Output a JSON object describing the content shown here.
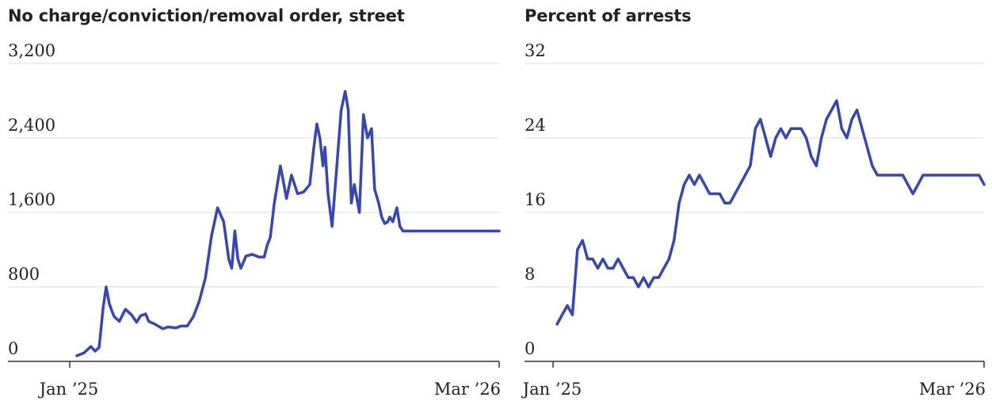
{
  "colors": {
    "line": "#3645b8",
    "grid": "#dddddd",
    "axis": "#333333",
    "text": "#222222"
  },
  "chart_data": [
    {
      "type": "line",
      "title": "No charge/conviction/removal order, street",
      "xlabel": "",
      "ylabel": "",
      "ylim": [
        0,
        3200
      ],
      "yticks": [
        0,
        800,
        1600,
        2400,
        3200
      ],
      "ytick_labels": [
        "0",
        "800",
        "1,600",
        "2,400",
        "3,200"
      ],
      "xlim": [
        "2025-01-01",
        "2026-03-01"
      ],
      "xtick_labels": [
        "Jan ’25",
        "Mar ’26"
      ],
      "grid": true,
      "series": [
        {
          "x": [
            "2025-01-08",
            "2025-01-15",
            "2025-01-22",
            "2025-01-26",
            "2025-01-30",
            "2025-02-03",
            "2025-02-06",
            "2025-02-09",
            "2025-02-12",
            "2025-02-14",
            "2025-02-19",
            "2025-02-25",
            "2025-03-03",
            "2025-03-08",
            "2025-03-12",
            "2025-03-17",
            "2025-03-20",
            "2025-03-26",
            "2025-04-03",
            "2025-04-08",
            "2025-04-16",
            "2025-04-21",
            "2025-04-27",
            "2025-05-03",
            "2025-05-09",
            "2025-05-15",
            "2025-05-21",
            "2025-05-27",
            "2025-06-02",
            "2025-06-07",
            "2025-06-10",
            "2025-06-13",
            "2025-06-16",
            "2025-06-19",
            "2025-06-24",
            "2025-06-30",
            "2025-07-07",
            "2025-07-12",
            "2025-07-15",
            "2025-07-18",
            "2025-07-22",
            "2025-07-28",
            "2025-08-03",
            "2025-08-08",
            "2025-08-14",
            "2025-08-20",
            "2025-08-26",
            "2025-08-30",
            "2025-09-02",
            "2025-09-05",
            "2025-09-08",
            "2025-09-10",
            "2025-09-13",
            "2025-09-17",
            "2025-09-21",
            "2025-09-26",
            "2025-09-30",
            "2025-10-03",
            "2025-10-06",
            "2025-10-09",
            "2025-10-14",
            "2025-10-18",
            "2025-10-22",
            "2025-10-26",
            "2025-10-29",
            "2025-11-02",
            "2025-11-05",
            "2025-11-08",
            "2025-11-11",
            "2025-11-13",
            "2025-11-16",
            "2025-11-20",
            "2025-11-23",
            "2025-11-26",
            "2025-12-01",
            "2025-12-04",
            "2025-12-06",
            "2025-12-09",
            "2025-12-12",
            "2025-12-15",
            "2025-12-18",
            "2025-12-20",
            "2025-12-24",
            "2025-12-27",
            "2025-12-31",
            "2026-01-04",
            "2026-01-07",
            "2026-01-10",
            "2026-01-13",
            "2026-01-16",
            "2026-01-19",
            "2026-01-22",
            "2026-01-25",
            "2026-01-28",
            "2026-02-01",
            "2026-02-05",
            "2026-02-08",
            "2026-02-11",
            "2026-02-15",
            "2026-02-19",
            "2026-02-23",
            "2026-02-26",
            "2026-03-01"
          ],
          "y": [
            60,
            90,
            160,
            110,
            150,
            580,
            800,
            620,
            530,
            480,
            430,
            560,
            500,
            420,
            490,
            510,
            430,
            400,
            350,
            370,
            360,
            380,
            380,
            480,
            650,
            900,
            1350,
            1650,
            1500,
            1100,
            1000,
            1400,
            1100,
            1000,
            1130,
            1150,
            1120,
            1120,
            1250,
            1330,
            1700,
            2100,
            1750,
            2000,
            1800,
            1820,
            1900,
            2300,
            2550,
            2400,
            2100,
            2300,
            1800,
            1450,
            2000,
            2700,
            2900,
            2700,
            1700,
            1900,
            1600,
            2650,
            2400,
            2500,
            1850,
            1700,
            1550,
            1480,
            1500,
            1550,
            1500,
            1650,
            1450,
            1400,
            1400,
            1400,
            1400,
            1400,
            1400,
            1400,
            1400,
            1400,
            1400,
            1400,
            1400,
            1400,
            1400,
            1400,
            1400,
            1400,
            1400,
            1400,
            1400,
            1400,
            1400,
            1400,
            1400,
            1400,
            1400,
            1400,
            1400,
            1400,
            1400
          ]
        }
      ]
    },
    {
      "type": "line",
      "title": "Percent of arrests",
      "xlabel": "",
      "ylabel": "",
      "ylim": [
        0,
        32
      ],
      "yticks": [
        0,
        8,
        16,
        24,
        32
      ],
      "ytick_labels": [
        "0",
        "8",
        "16",
        "24",
        "32"
      ],
      "xlim": [
        "2025-01-01",
        "2026-03-01"
      ],
      "xtick_labels": [
        "Jan ’25",
        "Mar ’26"
      ],
      "grid": true,
      "series": [
        {
          "x": [
            "2025-01-05",
            "2025-01-10",
            "2025-01-15",
            "2025-01-20",
            "2025-01-25",
            "2025-01-30",
            "2025-02-04",
            "2025-02-09",
            "2025-02-14",
            "2025-02-19",
            "2025-02-24",
            "2025-03-01",
            "2025-03-06",
            "2025-03-11",
            "2025-03-16",
            "2025-03-21",
            "2025-03-26",
            "2025-03-31",
            "2025-04-05",
            "2025-04-10",
            "2025-04-15",
            "2025-04-20",
            "2025-04-25",
            "2025-04-30",
            "2025-05-05",
            "2025-05-10",
            "2025-05-15",
            "2025-05-20",
            "2025-05-25",
            "2025-05-30",
            "2025-06-04",
            "2025-06-09",
            "2025-06-14",
            "2025-06-19",
            "2025-06-24",
            "2025-06-29",
            "2025-07-04",
            "2025-07-09",
            "2025-07-14",
            "2025-07-19",
            "2025-07-24",
            "2025-07-29",
            "2025-08-03",
            "2025-08-08",
            "2025-08-13",
            "2025-08-18",
            "2025-08-23",
            "2025-08-28",
            "2025-09-02",
            "2025-09-07",
            "2025-09-12",
            "2025-09-17",
            "2025-09-22",
            "2025-09-27",
            "2025-10-02",
            "2025-10-07",
            "2025-10-12",
            "2025-10-17",
            "2025-10-22",
            "2025-10-27",
            "2025-11-01",
            "2025-11-06",
            "2025-11-11",
            "2025-11-16",
            "2025-11-21",
            "2025-11-26",
            "2025-12-01",
            "2025-12-06",
            "2025-12-11",
            "2025-12-16",
            "2025-12-21",
            "2025-12-26",
            "2025-12-31",
            "2026-01-05",
            "2026-01-10",
            "2026-01-15",
            "2026-01-20",
            "2026-01-25",
            "2026-01-30",
            "2026-02-04",
            "2026-02-09",
            "2026-02-14",
            "2026-02-19",
            "2026-02-24",
            "2026-03-01"
          ],
          "y": [
            4,
            5,
            6,
            5,
            12,
            13,
            11,
            11,
            10,
            11,
            10,
            10,
            11,
            10,
            9,
            9,
            8,
            9,
            8,
            9,
            9,
            10,
            11,
            13,
            17,
            19,
            20,
            19,
            20,
            19,
            18,
            18,
            18,
            17,
            17,
            18,
            19,
            20,
            21,
            25,
            26,
            24,
            22,
            24,
            25,
            24,
            25,
            25,
            25,
            24,
            22,
            21,
            24,
            26,
            27,
            28,
            25,
            24,
            26,
            27,
            25,
            23,
            21,
            20,
            20,
            20,
            20,
            20,
            20,
            19,
            18,
            19,
            20,
            20,
            20,
            20,
            20,
            20,
            20,
            20,
            20,
            20,
            20,
            20,
            19
          ]
        }
      ]
    }
  ]
}
